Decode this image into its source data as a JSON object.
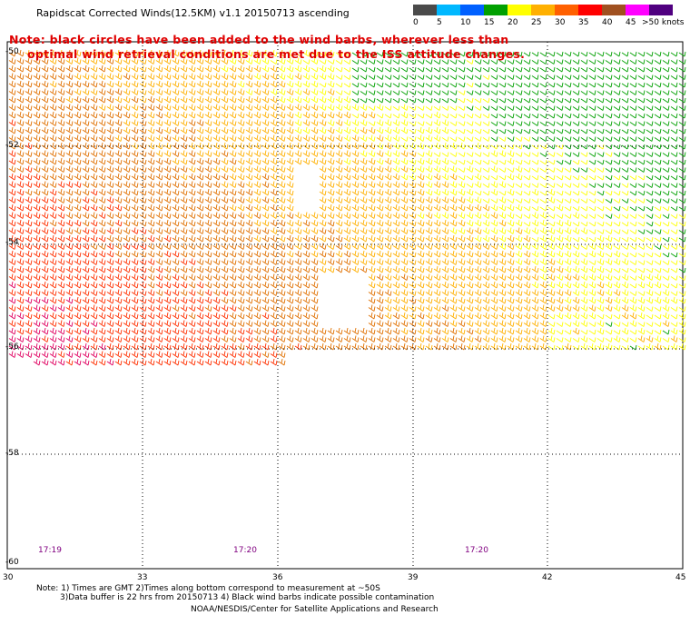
{
  "title": "Rapidscat Corrected Winds(12.5KM) v1.1 20150713 ascending",
  "note": {
    "line1": "Note: black circles have been added to the wind barbs, wherever less than",
    "line2": "optimal wind retrieval conditions are met due to the ISS attitude changes."
  },
  "colorbar": {
    "labels": [
      "0",
      "5",
      "10",
      "15",
      "20",
      "25",
      "30",
      "35",
      "40",
      "45",
      ">50 knots"
    ],
    "colors": [
      "#4a4a4a",
      "#00b8ff",
      "#0060ff",
      "#00a000",
      "#ffff00",
      "#ffb000",
      "#ff6000",
      "#ff0000",
      "#a05020",
      "#ff00ff",
      "#500080"
    ]
  },
  "axes": {
    "lat_labels": [
      "-50",
      "-52",
      "-54",
      "-56",
      "-58",
      "-60"
    ],
    "lon_labels": [
      "30",
      "33",
      "36",
      "39",
      "42",
      "45"
    ]
  },
  "times": [
    "17:19",
    "17:20",
    "17:20"
  ],
  "footer": {
    "line1": "Note: 1) Times are GMT 2)Times along bottom correspond to measurement at ~50S",
    "line2": "3)Data buffer is 22 hrs from 20150713 4) Black wind barbs indicate possible contamination",
    "line3": "NOAA/NESDIS/Center for Satellite Applications and Research"
  }
}
